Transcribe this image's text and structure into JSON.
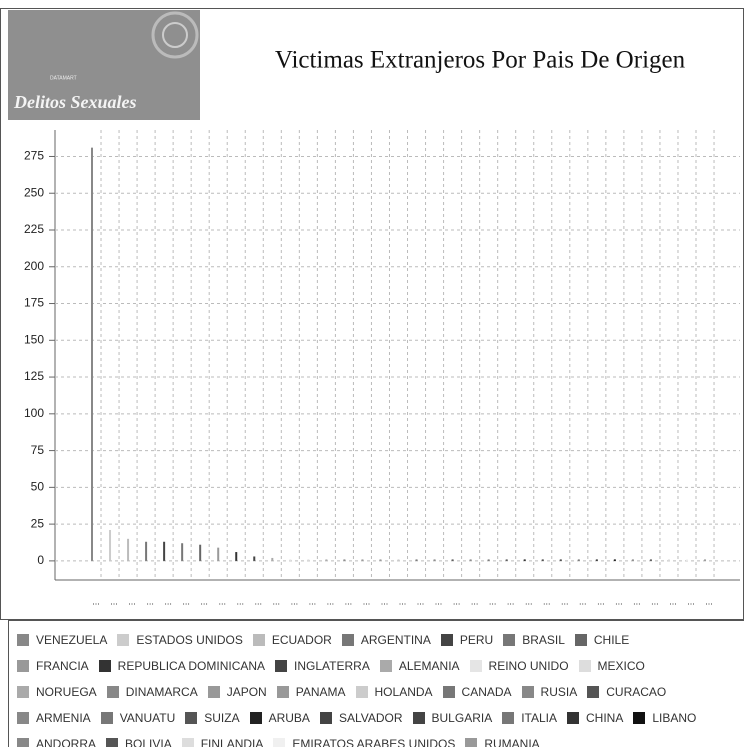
{
  "header": {
    "brand_small": "DATAMART",
    "brand": "Delitos Sexuales"
  },
  "chart_data": {
    "type": "bar",
    "title": "Victimas Extranjeros Por Pais De Origen",
    "categories": [
      "VENEZUELA",
      "ESTADOS UNIDOS",
      "ECUADOR",
      "ARGENTINA",
      "PERU",
      "BRASIL",
      "CHILE",
      "FRANCIA",
      "REPUBLICA DOMINICANA",
      "INGLATERRA",
      "ALEMANIA",
      "REINO UNIDO",
      "MEXICO",
      "NORUEGA",
      "DINAMARCA",
      "JAPON",
      "PANAMA",
      "HOLANDA",
      "CANADA",
      "RUSIA",
      "CURACAO",
      "ARMENIA",
      "VANUATU",
      "SUIZA",
      "ARUBA",
      "SALVADOR",
      "BULGARIA",
      "ITALIA",
      "CHINA",
      "LIBANO",
      "ANDORRA",
      "BOLIVIA",
      "FINLANDIA",
      "EMIRATOS ARABES UNIDOS",
      "RUMANIA"
    ],
    "x_tick_labels": [
      "...",
      "...",
      "...",
      "...",
      "...",
      "...",
      "...",
      "...",
      "...",
      "...",
      "...",
      "...",
      "...",
      "...",
      "...",
      "...",
      "...",
      "...",
      "...",
      "...",
      "...",
      "...",
      "...",
      "...",
      "...",
      "...",
      "...",
      "...",
      "...",
      "...",
      "...",
      "...",
      "...",
      "...",
      "..."
    ],
    "values": [
      281,
      21,
      15,
      13,
      13,
      12,
      11,
      9,
      6,
      3,
      2,
      1,
      1,
      1,
      1,
      1,
      1,
      1,
      1,
      1,
      1,
      1,
      1,
      1,
      1,
      1,
      1,
      1,
      1,
      1,
      1,
      1,
      1,
      1,
      1
    ],
    "colors": [
      "#888888",
      "#cccccc",
      "#bbbbbb",
      "#777777",
      "#444444",
      "#777777",
      "#666666",
      "#999999",
      "#333333",
      "#444444",
      "#aaaaaa",
      "#e5e5e5",
      "#dddddd",
      "#aaaaaa",
      "#888888",
      "#999999",
      "#999999",
      "#cccccc",
      "#777777",
      "#888888",
      "#555555",
      "#888888",
      "#777777",
      "#555555",
      "#222222",
      "#444444",
      "#444444",
      "#777777",
      "#333333",
      "#111111",
      "#888888",
      "#555555",
      "#dddddd",
      "#f0f0f0",
      "#999999"
    ],
    "ylim": [
      -13,
      293
    ],
    "yticks": [
      0,
      25,
      50,
      75,
      100,
      125,
      150,
      175,
      200,
      225,
      250,
      275
    ],
    "grid": true
  }
}
